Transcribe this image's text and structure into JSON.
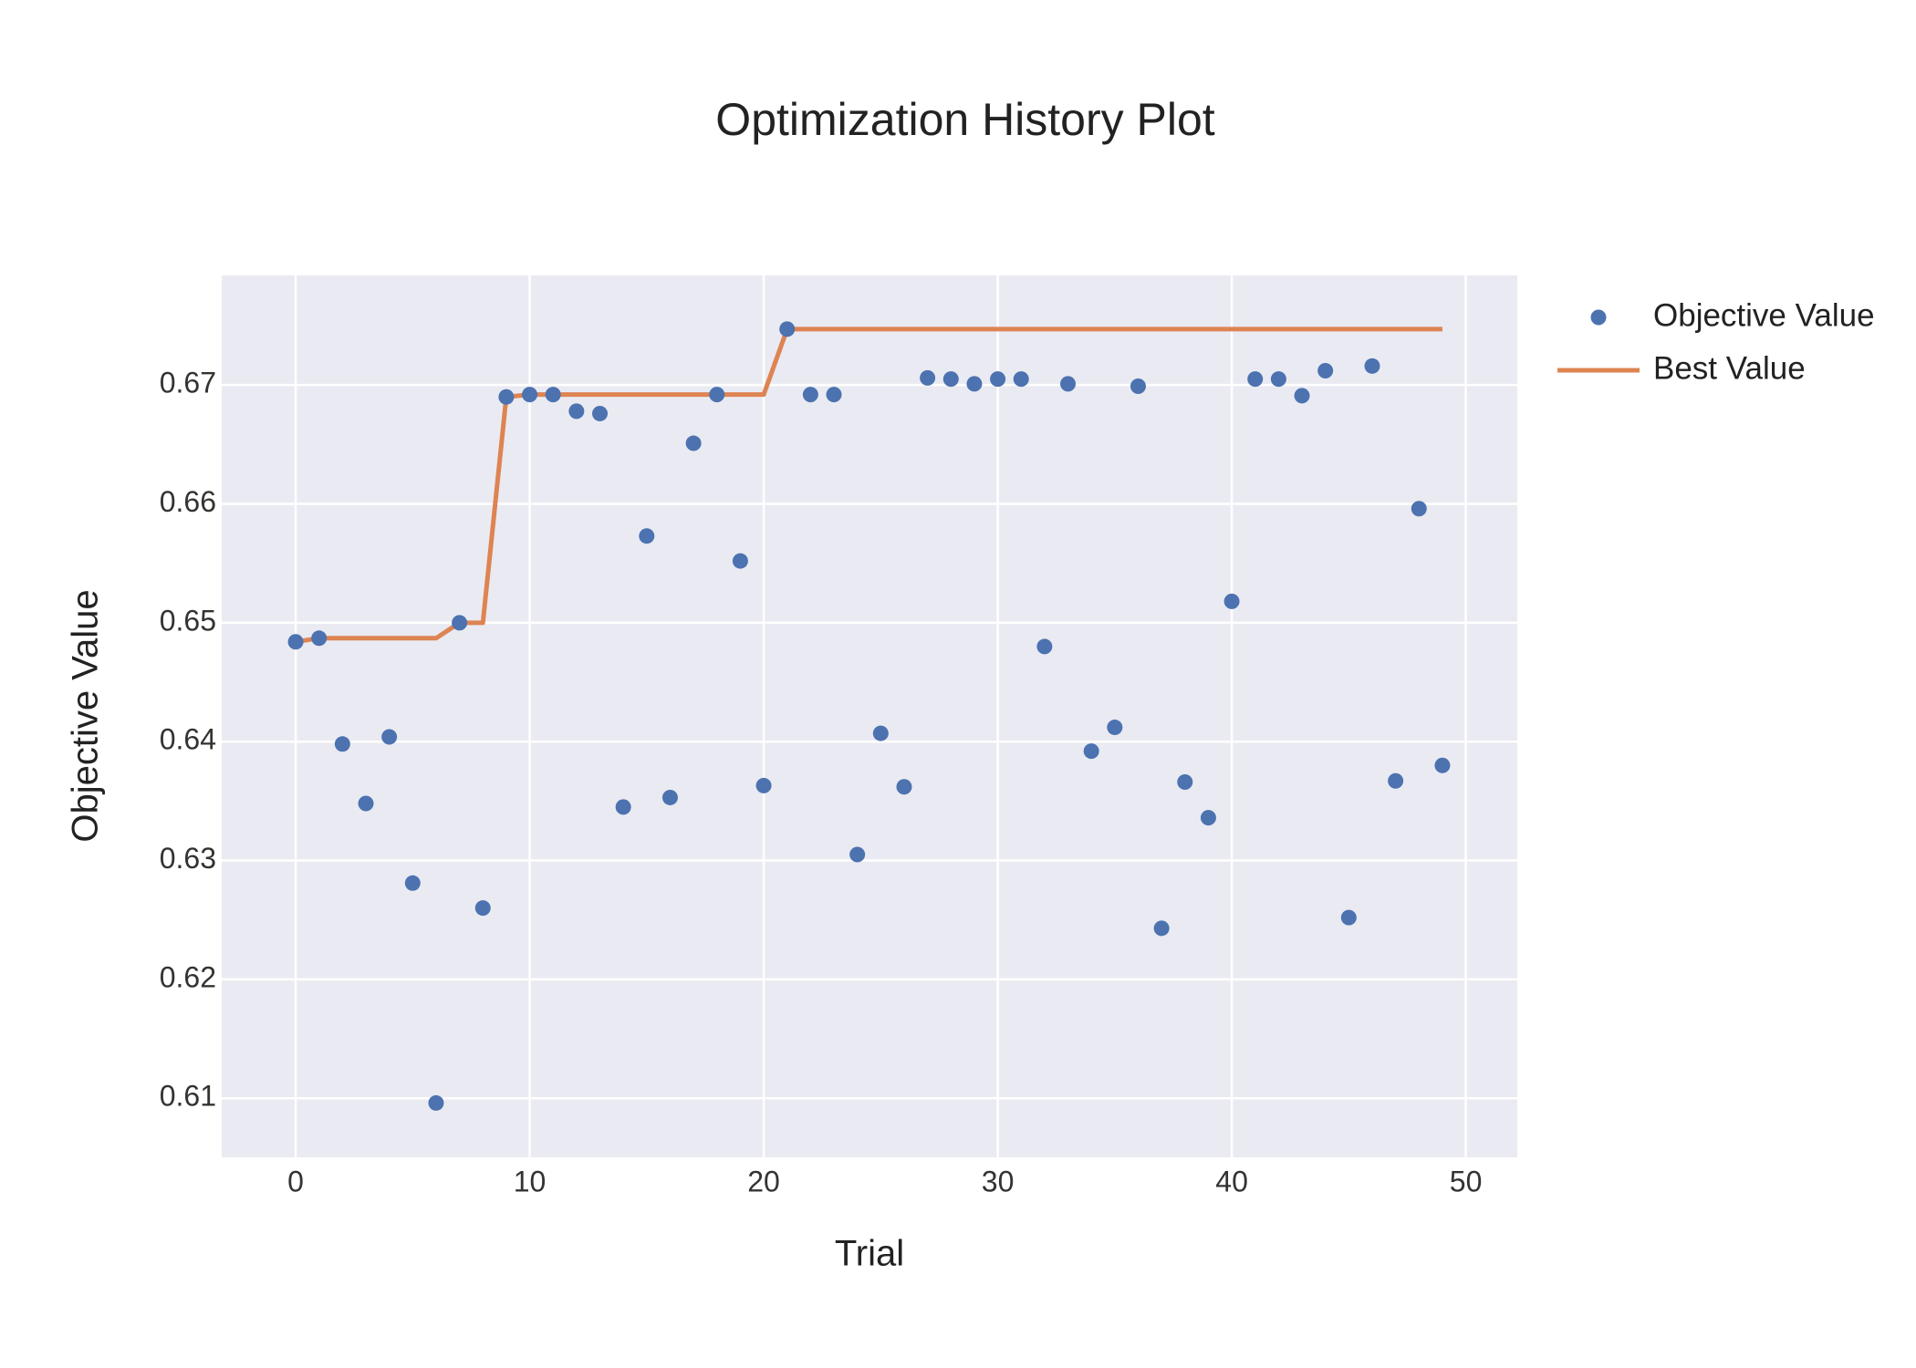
{
  "chart_data": {
    "type": "scatter",
    "title": "Optimization History Plot",
    "x_label": "Trial",
    "y_label": "Objective Value",
    "x": [
      0,
      1,
      2,
      3,
      4,
      5,
      6,
      7,
      8,
      9,
      10,
      11,
      12,
      13,
      14,
      15,
      16,
      17,
      18,
      19,
      20,
      21,
      22,
      23,
      24,
      25,
      26,
      27,
      28,
      29,
      30,
      31,
      32,
      33,
      34,
      35,
      36,
      37,
      38,
      39,
      40,
      41,
      42,
      43,
      44,
      45,
      46,
      47,
      48,
      49
    ],
    "series": [
      {
        "name": "Objective Value",
        "color": "#4c72b0",
        "mode": "markers",
        "values": [
          0.6484,
          0.6487,
          0.6398,
          0.6348,
          0.6404,
          0.6281,
          0.6096,
          0.65,
          0.626,
          0.669,
          0.6692,
          0.6692,
          0.6678,
          0.6676,
          0.6345,
          0.6573,
          0.6353,
          0.6651,
          0.6692,
          0.6552,
          0.6363,
          0.6747,
          0.6692,
          0.6692,
          0.6305,
          0.6407,
          0.6362,
          0.6706,
          0.6705,
          0.6701,
          0.6705,
          0.6705,
          0.648,
          0.6701,
          0.6392,
          0.6412,
          0.6699,
          0.6243,
          0.6366,
          0.6336,
          0.6518,
          0.6705,
          0.6705,
          0.6691,
          0.6712,
          0.6252,
          0.6716,
          0.6367,
          0.6596,
          0.638
        ]
      },
      {
        "name": "Best Value",
        "color": "#dd8452",
        "mode": "lines",
        "values": [
          0.6484,
          0.6487,
          0.6487,
          0.6487,
          0.6487,
          0.6487,
          0.6487,
          0.65,
          0.65,
          0.669,
          0.6692,
          0.6692,
          0.6692,
          0.6692,
          0.6692,
          0.6692,
          0.6692,
          0.6692,
          0.6692,
          0.6692,
          0.6692,
          0.6747,
          0.6747,
          0.6747,
          0.6747,
          0.6747,
          0.6747,
          0.6747,
          0.6747,
          0.6747,
          0.6747,
          0.6747,
          0.6747,
          0.6747,
          0.6747,
          0.6747,
          0.6747,
          0.6747,
          0.6747,
          0.6747,
          0.6747,
          0.6747,
          0.6747,
          0.6747,
          0.6747,
          0.6747,
          0.6747,
          0.6747,
          0.6747,
          0.6747
        ]
      }
    ],
    "xlim": [
      -3.16,
      52.2
    ],
    "ylim": [
      0.60503,
      0.67922
    ],
    "xticks": [
      0,
      10,
      20,
      30,
      40,
      50
    ],
    "yticks": [
      0.61,
      0.62,
      0.63,
      0.64,
      0.65,
      0.66,
      0.67
    ],
    "grid": true,
    "legend": "right",
    "background": "#eaeaf2"
  }
}
